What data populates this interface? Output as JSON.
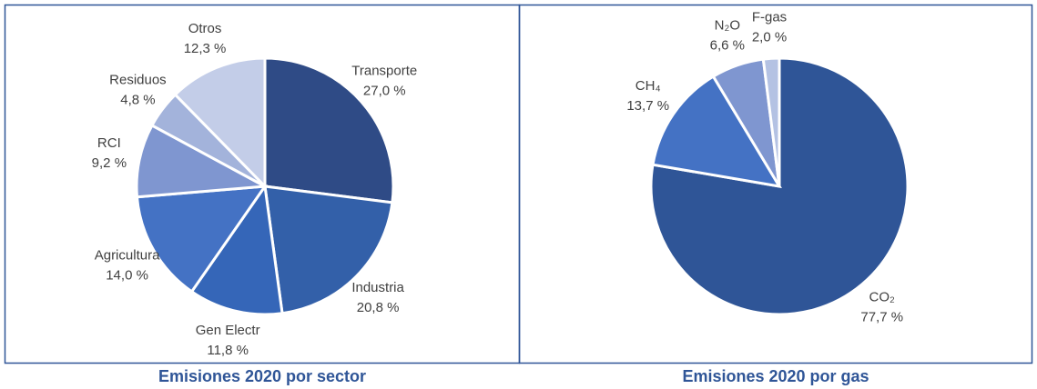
{
  "chart_data": [
    {
      "type": "pie",
      "title": "Emisiones 2020 por sector",
      "categories": [
        "Transporte",
        "Industria",
        "Gen Electr",
        "Agricultura",
        "RCI",
        "Residuos",
        "Otros"
      ],
      "values": [
        27.0,
        20.8,
        11.8,
        14.0,
        9.2,
        4.8,
        12.3
      ],
      "value_labels": [
        "27,0 %",
        "20,8 %",
        "11,8 %",
        "14,0 %",
        "9,2 %",
        "4,8 %",
        "12,3 %"
      ],
      "colors": [
        "#2f4b86",
        "#3360a9",
        "#3566b8",
        "#4472c4",
        "#7f96d0",
        "#a3b3db",
        "#c3cde8"
      ]
    },
    {
      "type": "pie",
      "title": "Emisiones 2020 por gas",
      "categories": [
        "CO₂",
        "CH₄",
        "N₂O",
        "F-gas"
      ],
      "values": [
        77.7,
        13.7,
        6.6,
        2.0
      ],
      "value_labels": [
        "77,7 %",
        "13,7 %",
        "6,6 %",
        "2,0 %"
      ],
      "colors": [
        "#2f5597",
        "#4472c4",
        "#7f96d0",
        "#b4c2e3"
      ]
    }
  ]
}
